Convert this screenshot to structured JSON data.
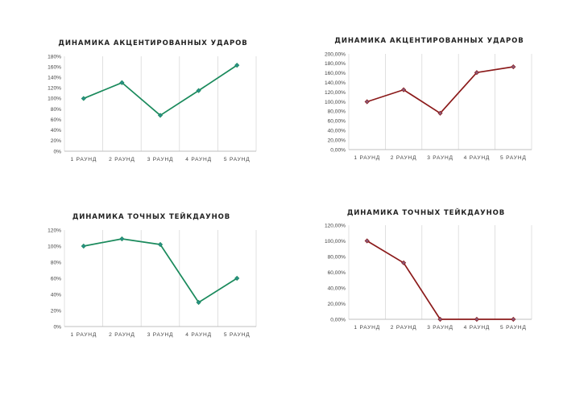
{
  "chart_data": [
    {
      "type": "line",
      "title": "ДИНАМИКА АКЦЕНТИРОВАННЫХ УДАРОВ",
      "categories": [
        "1 РАУНД",
        "2 РАУНД",
        "3 РАУНД",
        "4 РАУНД",
        "5 РАУНД"
      ],
      "series": [
        {
          "values": [
            100,
            130,
            68,
            115,
            163
          ]
        }
      ],
      "yticks": [
        "0%",
        "20%",
        "40%",
        "60%",
        "80%",
        "100%",
        "120%",
        "140%",
        "160%",
        "180%"
      ],
      "ylim": [
        0,
        180
      ],
      "color": "#1a8a5c",
      "marker_color": "#2a8f8a",
      "grid": "vertical"
    },
    {
      "type": "line",
      "title": "ДИНАМИКА АКЦЕНТИРОВАННЫХ УДАРОВ",
      "categories": [
        "1 РАУНД",
        "2 РАУНД",
        "3 РАУНД",
        "4 РАУНД",
        "5 РАУНД"
      ],
      "series": [
        {
          "values": [
            100,
            125,
            76,
            161,
            173
          ]
        }
      ],
      "yticks": [
        "0,00%",
        "20,00%",
        "40,00%",
        "60,00%",
        "80,00%",
        "100,00%",
        "120,00%",
        "140,00%",
        "160,00%",
        "180,00%",
        "200,00%"
      ],
      "ylim": [
        0,
        200
      ],
      "color": "#8b1a1a",
      "marker_color": "#8a5a7a",
      "grid": "vertical"
    },
    {
      "type": "line",
      "title": "ДИНАМИКА ТОЧНЫХ ТЕЙКДАУНОВ",
      "categories": [
        "1 РАУНД",
        "2 РАУНД",
        "3 РАУНД",
        "4 РАУНД",
        "5 РАУНД"
      ],
      "series": [
        {
          "values": [
            100,
            109,
            102,
            30,
            60
          ]
        }
      ],
      "yticks": [
        "0%",
        "20%",
        "40%",
        "60%",
        "80%",
        "100%",
        "120%"
      ],
      "ylim": [
        0,
        120
      ],
      "color": "#1a8a5c",
      "marker_color": "#2a8f8a",
      "grid": "vertical"
    },
    {
      "type": "line",
      "title": "ДИНАМИКА ТОЧНЫХ ТЕЙКДАУНОВ",
      "categories": [
        "1 РАУНД",
        "2 РАУНД",
        "3 РАУНД",
        "4 РАУНД",
        "5 РАУНД"
      ],
      "series": [
        {
          "values": [
            100,
            72,
            0,
            0,
            0
          ]
        }
      ],
      "yticks": [
        "0,00%",
        "20,00%",
        "40,00%",
        "60,00%",
        "80,00%",
        "100,00%",
        "120,00%"
      ],
      "ylim": [
        0,
        120
      ],
      "color": "#8b1a1a",
      "marker_color": "#8a5a7a",
      "grid": "vertical"
    }
  ]
}
